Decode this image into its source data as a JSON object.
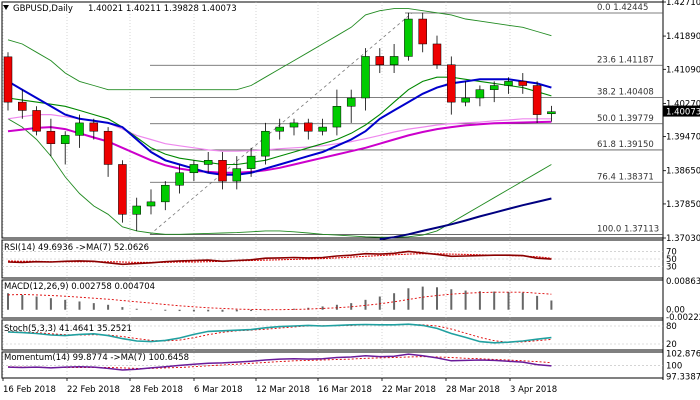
{
  "header": {
    "symbol": "GBPUSD,Daily",
    "ohlc": "1.40021 1.40211 1.39828 1.40073",
    "last_price": "1.40073"
  },
  "colors": {
    "bull": "#00cc00",
    "bear": "#ee0000",
    "bollinger": "#228b22",
    "ma_fast": "#0000cc",
    "ma_slow_green": "#008800",
    "ma_pink": "#cc00cc",
    "ma_long": "#000080",
    "price_box": "#000000"
  },
  "chart_data": [
    {
      "type": "candlestick",
      "title": "GBPUSD,Daily",
      "ylim": [
        1.3703,
        1.4271
      ],
      "y_ticks": [
        "1.42710",
        "1.41890",
        "1.41090",
        "1.40270",
        "1.39470",
        "1.38650",
        "1.37850",
        "1.37030"
      ],
      "x_ticks": [
        "16 Feb 2018",
        "22 Feb 2018",
        "28 Feb 2018",
        "6 Mar 2018",
        "12 Mar 2018",
        "16 Mar 2018",
        "22 Mar 2018",
        "28 Mar 2018",
        "3 Apr 2018"
      ],
      "fib_levels": [
        {
          "label": "0.0",
          "value": "1.42445"
        },
        {
          "label": "23.6",
          "value": "1.41187"
        },
        {
          "label": "38.2",
          "value": "1.40408"
        },
        {
          "label": "50.0",
          "value": "1.39779"
        },
        {
          "label": "61.8",
          "value": "1.39150"
        },
        {
          "label": "76.4",
          "value": "1.38371"
        },
        {
          "label": "100.0",
          "value": "1.37113"
        }
      ],
      "candles": [
        {
          "o": 1.4139,
          "h": 1.415,
          "l": 1.401,
          "c": 1.403
        },
        {
          "o": 1.403,
          "h": 1.406,
          "l": 1.399,
          "c": 1.401
        },
        {
          "o": 1.401,
          "h": 1.402,
          "l": 1.395,
          "c": 1.396
        },
        {
          "o": 1.396,
          "h": 1.399,
          "l": 1.39,
          "c": 1.393
        },
        {
          "o": 1.393,
          "h": 1.396,
          "l": 1.388,
          "c": 1.395
        },
        {
          "o": 1.395,
          "h": 1.4,
          "l": 1.392,
          "c": 1.398
        },
        {
          "o": 1.398,
          "h": 1.399,
          "l": 1.394,
          "c": 1.396
        },
        {
          "o": 1.396,
          "h": 1.397,
          "l": 1.385,
          "c": 1.388
        },
        {
          "o": 1.388,
          "h": 1.389,
          "l": 1.374,
          "c": 1.376
        },
        {
          "o": 1.376,
          "h": 1.38,
          "l": 1.372,
          "c": 1.378
        },
        {
          "o": 1.378,
          "h": 1.382,
          "l": 1.376,
          "c": 1.379
        },
        {
          "o": 1.379,
          "h": 1.384,
          "l": 1.377,
          "c": 1.383
        },
        {
          "o": 1.383,
          "h": 1.388,
          "l": 1.381,
          "c": 1.386
        },
        {
          "o": 1.386,
          "h": 1.389,
          "l": 1.384,
          "c": 1.388
        },
        {
          "o": 1.388,
          "h": 1.391,
          "l": 1.386,
          "c": 1.389
        },
        {
          "o": 1.389,
          "h": 1.391,
          "l": 1.382,
          "c": 1.384
        },
        {
          "o": 1.384,
          "h": 1.39,
          "l": 1.382,
          "c": 1.387
        },
        {
          "o": 1.387,
          "h": 1.392,
          "l": 1.385,
          "c": 1.39
        },
        {
          "o": 1.39,
          "h": 1.398,
          "l": 1.388,
          "c": 1.396
        },
        {
          "o": 1.396,
          "h": 1.399,
          "l": 1.394,
          "c": 1.397
        },
        {
          "o": 1.397,
          "h": 1.399,
          "l": 1.395,
          "c": 1.398
        },
        {
          "o": 1.398,
          "h": 1.399,
          "l": 1.394,
          "c": 1.396
        },
        {
          "o": 1.396,
          "h": 1.399,
          "l": 1.395,
          "c": 1.397
        },
        {
          "o": 1.397,
          "h": 1.406,
          "l": 1.395,
          "c": 1.402
        },
        {
          "o": 1.402,
          "h": 1.406,
          "l": 1.398,
          "c": 1.404
        },
        {
          "o": 1.404,
          "h": 1.416,
          "l": 1.401,
          "c": 1.414
        },
        {
          "o": 1.414,
          "h": 1.416,
          "l": 1.41,
          "c": 1.412
        },
        {
          "o": 1.412,
          "h": 1.417,
          "l": 1.41,
          "c": 1.414
        },
        {
          "o": 1.414,
          "h": 1.4245,
          "l": 1.413,
          "c": 1.423
        },
        {
          "o": 1.423,
          "h": 1.4245,
          "l": 1.415,
          "c": 1.417
        },
        {
          "o": 1.417,
          "h": 1.419,
          "l": 1.411,
          "c": 1.412
        },
        {
          "o": 1.412,
          "h": 1.414,
          "l": 1.4,
          "c": 1.403
        },
        {
          "o": 1.403,
          "h": 1.408,
          "l": 1.402,
          "c": 1.404
        },
        {
          "o": 1.404,
          "h": 1.407,
          "l": 1.402,
          "c": 1.406
        },
        {
          "o": 1.406,
          "h": 1.408,
          "l": 1.403,
          "c": 1.407
        },
        {
          "o": 1.407,
          "h": 1.409,
          "l": 1.405,
          "c": 1.408
        },
        {
          "o": 1.408,
          "h": 1.41,
          "l": 1.405,
          "c": 1.407
        },
        {
          "o": 1.407,
          "h": 1.408,
          "l": 1.398,
          "c": 1.4
        },
        {
          "o": 1.4002,
          "h": 1.4021,
          "l": 1.3983,
          "c": 1.4007
        }
      ],
      "bb_upper": [
        1.418,
        1.417,
        1.415,
        1.413,
        1.41,
        1.408,
        1.407,
        1.406,
        1.406,
        1.406,
        1.406,
        1.406,
        1.406,
        1.406,
        1.406,
        1.406,
        1.406,
        1.407,
        1.409,
        1.411,
        1.413,
        1.415,
        1.417,
        1.419,
        1.421,
        1.424,
        1.425,
        1.4255,
        1.4255,
        1.425,
        1.4245,
        1.424,
        1.423,
        1.4225,
        1.422,
        1.4215,
        1.421,
        1.42,
        1.419
      ],
      "bb_lower": [
        1.399,
        1.397,
        1.394,
        1.39,
        1.385,
        1.381,
        1.378,
        1.376,
        1.373,
        1.372,
        1.3715,
        1.3712,
        1.3712,
        1.3713,
        1.3714,
        1.3715,
        1.3716,
        1.3718,
        1.372,
        1.372,
        1.3718,
        1.3715,
        1.3712,
        1.371,
        1.3708,
        1.3706,
        1.3705,
        1.3705,
        1.3706,
        1.371,
        1.372,
        1.374,
        1.376,
        1.378,
        1.38,
        1.382,
        1.384,
        1.386,
        1.388
      ],
      "ma_blue": [
        1.408,
        1.406,
        1.404,
        1.402,
        1.4,
        1.399,
        1.3985,
        1.398,
        1.397,
        1.394,
        1.391,
        1.389,
        1.388,
        1.387,
        1.386,
        1.3855,
        1.3855,
        1.386,
        1.387,
        1.388,
        1.389,
        1.39,
        1.391,
        1.3925,
        1.394,
        1.396,
        1.399,
        1.401,
        1.403,
        1.405,
        1.4065,
        1.4075,
        1.408,
        1.4085,
        1.4085,
        1.4085,
        1.408,
        1.4075,
        1.4065
      ],
      "ma_green": [
        1.404,
        1.4035,
        1.403,
        1.4025,
        1.402,
        1.401,
        1.4,
        1.399,
        1.397,
        1.3945,
        1.392,
        1.3905,
        1.3895,
        1.389,
        1.3885,
        1.388,
        1.388,
        1.3885,
        1.389,
        1.39,
        1.391,
        1.392,
        1.393,
        1.394,
        1.3955,
        1.3975,
        1.4,
        1.403,
        1.406,
        1.408,
        1.409,
        1.409,
        1.4085,
        1.408,
        1.4075,
        1.407,
        1.4065,
        1.4055,
        1.4045
      ],
      "ma_pink_fast": [
        1.399,
        1.3995,
        1.4,
        1.4,
        1.3995,
        1.399,
        1.3985,
        1.398,
        1.3965,
        1.395,
        1.394,
        1.393,
        1.3925,
        1.392,
        1.3915,
        1.3912,
        1.3912,
        1.3913,
        1.3915,
        1.3918,
        1.392,
        1.3922,
        1.3925,
        1.393,
        1.3935,
        1.3942,
        1.395,
        1.3958,
        1.3965,
        1.397,
        1.3975,
        1.3978,
        1.398,
        1.3982,
        1.3985,
        1.3987,
        1.399,
        1.399,
        1.399
      ],
      "ma_pink_slow": [
        1.396,
        1.3964,
        1.3968,
        1.397,
        1.3965,
        1.3955,
        1.3945,
        1.3935,
        1.392,
        1.3905,
        1.389,
        1.3878,
        1.387,
        1.3865,
        1.3862,
        1.386,
        1.386,
        1.3862,
        1.3866,
        1.3872,
        1.388,
        1.3888,
        1.3896,
        1.3904,
        1.3912,
        1.392,
        1.393,
        1.394,
        1.395,
        1.3958,
        1.3965,
        1.397,
        1.3974,
        1.3977,
        1.3979,
        1.398,
        1.3981,
        1.3982,
        1.3983
      ],
      "ma_navy_long": [
        null,
        null,
        null,
        null,
        null,
        null,
        null,
        null,
        null,
        null,
        null,
        null,
        null,
        null,
        null,
        null,
        null,
        null,
        null,
        null,
        null,
        null,
        null,
        null,
        null,
        null,
        1.37,
        1.3705,
        1.3712,
        1.372,
        1.3728,
        1.3736,
        1.3745,
        1.3755,
        1.3764,
        1.3773,
        1.3782,
        1.379,
        1.3798
      ]
    },
    {
      "type": "line",
      "title": "RSI(14) 49.6936 ->MA(7) 52.0626",
      "y_ticks": [
        "70",
        "50",
        "30"
      ],
      "ylim": [
        0,
        100
      ],
      "series": [
        {
          "name": "RSI(14)",
          "values": [
            42,
            41,
            43,
            42,
            44,
            45,
            44,
            40,
            36,
            38,
            40,
            43,
            45,
            46,
            47,
            44,
            46,
            48,
            52,
            53,
            54,
            53,
            54,
            58,
            60,
            64,
            63,
            65,
            70,
            66,
            62,
            57,
            58,
            59,
            60,
            60,
            59,
            52,
            49.69
          ]
        },
        {
          "name": "MA(7)",
          "values": [
            45,
            44,
            44,
            43,
            43,
            43,
            43,
            43,
            42,
            41,
            41,
            41,
            42,
            42,
            43,
            44,
            45,
            46,
            47,
            48,
            49,
            50,
            51,
            53,
            55,
            57,
            59,
            61,
            63,
            64,
            64,
            63,
            62,
            61,
            60,
            59,
            58,
            56,
            52.06
          ]
        }
      ]
    },
    {
      "type": "bar",
      "title": "MACD(12,26,9) 0.002758 0.004704",
      "y_ticks": [
        "0.008635",
        "0.00",
        "-0.002224"
      ],
      "ylim": [
        -0.0025,
        0.009
      ],
      "histogram": [
        0.005,
        0.0045,
        0.004,
        0.0035,
        0.003,
        0.0025,
        0.002,
        0.0015,
        0.0008,
        0.0003,
        -0.0001,
        -0.0003,
        -0.0004,
        -0.0005,
        -0.0005,
        -0.0006,
        -0.0005,
        -0.0004,
        -0.0002,
        0.0,
        0.0003,
        0.0006,
        0.001,
        0.0015,
        0.002,
        0.003,
        0.004,
        0.005,
        0.0065,
        0.007,
        0.0068,
        0.0062,
        0.0058,
        0.0056,
        0.0055,
        0.0054,
        0.0052,
        0.0042,
        0.0028
      ],
      "signal": [
        0.0045,
        0.0046,
        0.0045,
        0.0043,
        0.0041,
        0.0038,
        0.0035,
        0.0032,
        0.0028,
        0.0024,
        0.002,
        0.0016,
        0.0012,
        0.0009,
        0.0006,
        0.0004,
        0.0002,
        0.0001,
        0.0,
        0.0,
        0.0001,
        0.0002,
        0.0004,
        0.0006,
        0.0009,
        0.0013,
        0.0018,
        0.0024,
        0.0031,
        0.0038,
        0.0043,
        0.0047,
        0.005,
        0.0052,
        0.0053,
        0.0053,
        0.0053,
        0.005,
        0.0047
      ]
    },
    {
      "type": "line",
      "title": "Stoch(5,3,3) 41.4641 35.2521",
      "y_ticks": [
        "80",
        "20"
      ],
      "ylim": [
        0,
        100
      ],
      "series": [
        {
          "name": "%K",
          "values": [
            60,
            58,
            55,
            50,
            48,
            52,
            54,
            48,
            38,
            30,
            28,
            32,
            40,
            52,
            62,
            64,
            66,
            68,
            74,
            78,
            80,
            82,
            80,
            82,
            84,
            85,
            84,
            84,
            86,
            82,
            72,
            55,
            42,
            28,
            24,
            26,
            30,
            36,
            41.46
          ]
        },
        {
          "name": "%D",
          "values": [
            62,
            60,
            58,
            54,
            51,
            50,
            51,
            50,
            45,
            38,
            32,
            30,
            33,
            41,
            51,
            59,
            64,
            66,
            69,
            73,
            77,
            80,
            81,
            81,
            82,
            84,
            85,
            84,
            85,
            84,
            80,
            70,
            56,
            42,
            31,
            26,
            27,
            31,
            35.25
          ]
        }
      ]
    },
    {
      "type": "line",
      "title": "Momentum(14) 99.8774 ->MA(7) 100.6458",
      "y_ticks": [
        "102.876",
        "100",
        "97.3387"
      ],
      "ylim": [
        97.0,
        103.2
      ],
      "series": [
        {
          "name": "Momentum(14)",
          "values": [
            99.6,
            99.5,
            99.6,
            99.4,
            99.6,
            99.7,
            99.6,
            99.3,
            98.9,
            99.1,
            99.4,
            99.7,
            100.0,
            100.3,
            100.5,
            100.6,
            100.8,
            101.0,
            101.3,
            101.5,
            101.6,
            101.5,
            101.6,
            101.9,
            102.0,
            102.3,
            102.1,
            102.2,
            102.7,
            102.3,
            101.8,
            101.1,
            101.2,
            101.3,
            101.2,
            101.0,
            100.8,
            100.2,
            99.88
          ]
        },
        {
          "name": "MA(7)",
          "values": [
            99.7,
            99.6,
            99.6,
            99.5,
            99.5,
            99.5,
            99.5,
            99.5,
            99.4,
            99.3,
            99.3,
            99.4,
            99.5,
            99.7,
            99.9,
            100.1,
            100.3,
            100.5,
            100.7,
            100.9,
            101.1,
            101.2,
            101.3,
            101.4,
            101.5,
            101.7,
            101.8,
            101.9,
            102.0,
            102.1,
            102.0,
            101.9,
            101.7,
            101.6,
            101.4,
            101.3,
            101.1,
            100.9,
            100.65
          ]
        }
      ]
    }
  ]
}
